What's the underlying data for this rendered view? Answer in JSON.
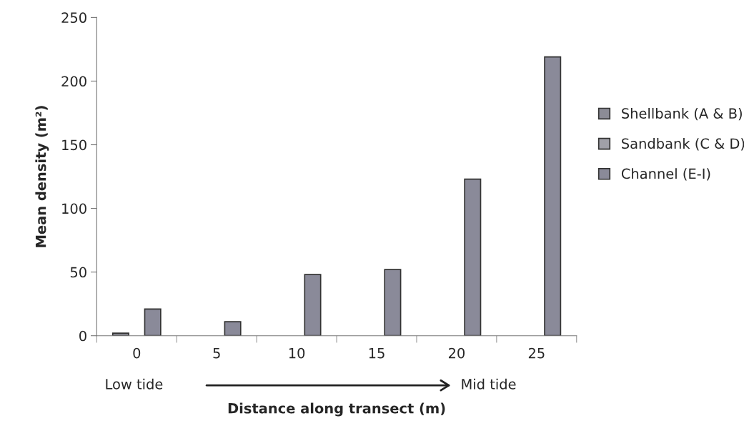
{
  "chart_data": {
    "type": "bar",
    "xlabel": "Distance along transect (m)",
    "ylabel": "Mean density (m²)",
    "categories": [
      "0",
      "5",
      "10",
      "15",
      "20",
      "25"
    ],
    "series": [
      {
        "name": "Shellbank (A & B)",
        "color": "#8c8c96",
        "values": [
          2,
          null,
          null,
          null,
          null,
          null
        ]
      },
      {
        "name": "Sandbank (C & D)",
        "color": "#a0a0a8",
        "values": [
          null,
          null,
          null,
          null,
          null,
          null
        ]
      },
      {
        "name": "Channel (E-I)",
        "color": "#8a8a99",
        "values": [
          21,
          11,
          48,
          52,
          123,
          219
        ]
      }
    ],
    "ylim": [
      0,
      250
    ],
    "yticks": [
      0,
      50,
      100,
      150,
      200,
      250
    ],
    "grid": false,
    "legend": "right",
    "annotations": [
      "Low tide",
      "Mid tide"
    ]
  }
}
